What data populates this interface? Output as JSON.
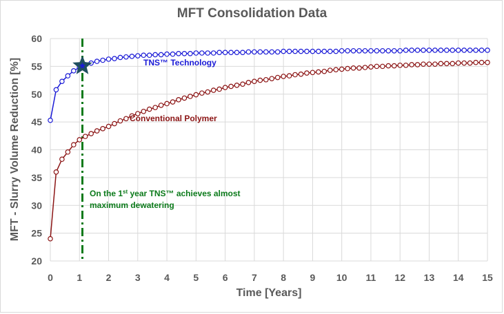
{
  "chart_data": {
    "type": "line",
    "title": "MFT Consolidation Data",
    "xlabel": "Time [Years]",
    "ylabel": "MFT - Slurry Volume Reduction [%]",
    "xlim": [
      0,
      15
    ],
    "ylim": [
      20,
      60
    ],
    "x_ticks": [
      "0",
      "1",
      "2",
      "3",
      "4",
      "5",
      "6",
      "7",
      "8",
      "9",
      "10",
      "11",
      "12",
      "13",
      "14",
      "15"
    ],
    "y_ticks": [
      "20",
      "25",
      "30",
      "35",
      "40",
      "45",
      "50",
      "55",
      "60"
    ],
    "grid": true,
    "x_start": 0,
    "x_step": 0.2,
    "series": [
      {
        "name": "TNS™ Technology",
        "color": "#1a1ad6",
        "values": [
          45.3,
          50.8,
          52.3,
          53.3,
          54.2,
          54.8,
          55.3,
          55.6,
          55.9,
          56.1,
          56.3,
          56.4,
          56.6,
          56.7,
          56.8,
          56.9,
          57.0,
          57.0,
          57.1,
          57.1,
          57.2,
          57.2,
          57.3,
          57.3,
          57.3,
          57.4,
          57.4,
          57.4,
          57.4,
          57.5,
          57.5,
          57.5,
          57.5,
          57.5,
          57.6,
          57.6,
          57.6,
          57.6,
          57.6,
          57.6,
          57.7,
          57.7,
          57.7,
          57.7,
          57.7,
          57.7,
          57.7,
          57.7,
          57.7,
          57.7,
          57.8,
          57.8,
          57.8,
          57.8,
          57.8,
          57.8,
          57.8,
          57.8,
          57.8,
          57.8,
          57.8,
          57.9,
          57.9,
          57.9,
          57.9,
          57.9,
          57.9,
          57.9,
          57.9,
          57.9,
          57.9,
          57.9,
          57.9,
          57.9,
          57.9,
          57.9
        ]
      },
      {
        "name": "Conventional Polymer",
        "color": "#8b1414",
        "values": [
          24.0,
          36.0,
          38.3,
          39.6,
          40.9,
          41.8,
          42.4,
          42.9,
          43.4,
          43.8,
          44.2,
          44.7,
          45.2,
          45.6,
          46.1,
          46.5,
          46.9,
          47.3,
          47.6,
          48.0,
          48.3,
          48.6,
          49.0,
          49.3,
          49.6,
          49.9,
          50.2,
          50.4,
          50.7,
          50.9,
          51.2,
          51.4,
          51.6,
          51.8,
          52.1,
          52.3,
          52.5,
          52.6,
          52.8,
          53.0,
          53.2,
          53.3,
          53.5,
          53.6,
          53.8,
          53.9,
          54.0,
          54.1,
          54.3,
          54.4,
          54.5,
          54.6,
          54.7,
          54.7,
          54.8,
          54.9,
          55.0,
          55.0,
          55.1,
          55.1,
          55.2,
          55.2,
          55.3,
          55.3,
          55.4,
          55.4,
          55.4,
          55.5,
          55.5,
          55.5,
          55.6,
          55.6,
          55.6,
          55.7,
          55.7,
          55.7
        ]
      }
    ],
    "marker": {
      "x": 1.1,
      "y": 55.1,
      "shape": "star",
      "color": "#1f4e5f"
    },
    "vline": {
      "x": 1.1,
      "style": "dash-dot",
      "color": "#0b7a1a"
    },
    "annotations": {
      "tns_label": "TNS™ Technology",
      "conv_label": "Conventional Polymer",
      "note_pre": "On the 1",
      "note_sup": "st",
      "note_post": " year TNS™ achieves almost",
      "note_line2": "maximum dewatering"
    }
  }
}
